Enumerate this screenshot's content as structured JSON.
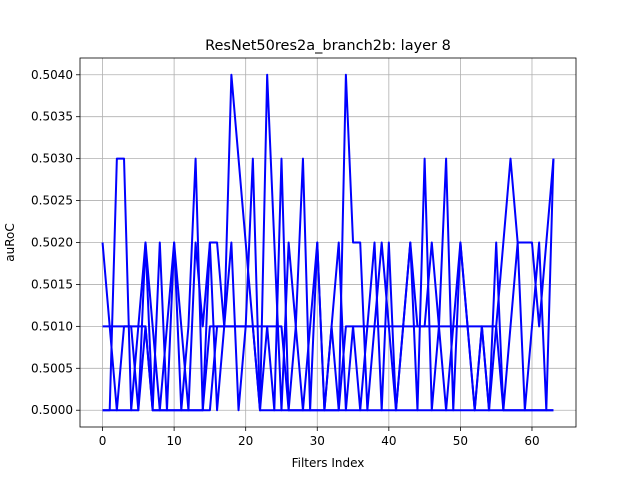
{
  "chart_data": {
    "type": "line",
    "title": "ResNet50res2a_branch2b: layer 8",
    "xlabel": "Filters Index",
    "ylabel": "auRoC",
    "xlim": [
      -3.15,
      66.15
    ],
    "ylim": [
      0.4998,
      0.5042
    ],
    "xticks": [
      0,
      10,
      20,
      30,
      40,
      50,
      60
    ],
    "xtick_labels": [
      "0",
      "10",
      "20",
      "30",
      "40",
      "50",
      "60"
    ],
    "yticks": [
      0.5,
      0.5005,
      0.501,
      0.5015,
      0.502,
      0.5025,
      0.503,
      0.5035,
      0.504
    ],
    "ytick_labels": [
      "0.5000",
      "0.5005",
      "0.5010",
      "0.5015",
      "0.5020",
      "0.5025",
      "0.5030",
      "0.5035",
      "0.5040"
    ],
    "grid": true,
    "color": "#0000ff",
    "series": [
      {
        "values": [
          0.502,
          0.501,
          0.5,
          0.501,
          0.501,
          0.5,
          0.501,
          0.5,
          0.502,
          0.5,
          0.502,
          0.5,
          0.501,
          0.503,
          0.5,
          0.502,
          0.5,
          0.501,
          0.502,
          0.5,
          0.501,
          0.503,
          0.5,
          0.501,
          0.5,
          0.503,
          0.5,
          0.501,
          0.503,
          0.5,
          0.502,
          0.5,
          0.501,
          0.502,
          0.5,
          0.501,
          0.5,
          0.501,
          0.502,
          0.5,
          0.502,
          0.5,
          0.501,
          0.502,
          0.5,
          0.503,
          0.5,
          0.501,
          0.503,
          0.5,
          0.502,
          0.501,
          0.5,
          0.501,
          0.5,
          0.502,
          0.5,
          0.501,
          0.502,
          0.5,
          0.501,
          0.502,
          0.5,
          0.503
        ]
      },
      {
        "values": [
          0.501,
          0.501,
          0.501,
          0.501,
          0.501,
          0.501,
          0.501,
          0.5,
          0.5,
          0.5,
          0.5,
          0.5,
          0.5,
          0.5,
          0.5,
          0.501,
          0.501,
          0.501,
          0.501,
          0.501,
          0.501,
          0.501,
          0.5,
          0.5,
          0.5,
          0.5,
          0.5,
          0.5,
          0.5,
          0.5,
          0.5,
          0.5,
          0.5,
          0.5,
          0.501,
          0.501,
          0.501,
          0.501,
          0.501,
          0.501,
          0.501,
          0.501,
          0.501,
          0.501,
          0.501,
          0.501,
          0.501,
          0.501,
          0.501,
          0.501,
          0.501,
          0.501,
          0.501,
          0.501,
          0.501,
          0.501,
          0.5,
          0.5,
          0.5,
          0.5,
          0.5,
          0.5,
          0.5,
          0.5
        ]
      },
      {
        "values": [
          0.5,
          0.5,
          0.503,
          0.503,
          0.5,
          0.501,
          0.502,
          0.501,
          0.5,
          0.501,
          0.502,
          0.501,
          0.5,
          0.502,
          0.501,
          0.502,
          0.502,
          0.501,
          0.504,
          0.503,
          0.502,
          0.501,
          0.5,
          0.504,
          0.502,
          0.5,
          0.502,
          0.501,
          0.5,
          0.501,
          0.502,
          0.5,
          0.501,
          0.5,
          0.504,
          0.502,
          0.502,
          0.5,
          0.501,
          0.502,
          0.501,
          0.5,
          0.501,
          0.502,
          0.501,
          0.501,
          0.502,
          0.501,
          0.5,
          0.501,
          0.502,
          0.501,
          0.5,
          0.501,
          0.5,
          0.501,
          0.502,
          0.503,
          0.502,
          0.502,
          0.502,
          0.501,
          0.502,
          0.503
        ]
      },
      {
        "values": [
          0.5,
          0.5,
          0.5,
          0.5,
          0.5,
          0.5,
          0.502,
          0.5,
          0.5,
          0.5,
          0.5,
          0.5,
          0.5,
          0.5,
          0.5,
          0.5,
          0.501,
          0.501,
          0.501,
          0.501,
          0.501,
          0.501,
          0.501,
          0.501,
          0.501,
          0.501,
          0.5,
          0.5,
          0.5,
          0.5,
          0.5,
          0.5,
          0.5,
          0.5,
          0.5,
          0.5,
          0.5,
          0.5,
          0.5,
          0.5,
          0.5,
          0.5,
          0.5,
          0.5,
          0.5,
          0.5,
          0.5,
          0.5,
          0.5,
          0.5,
          0.5,
          0.5,
          0.5,
          0.5,
          0.5,
          0.5,
          0.5,
          0.5,
          0.5,
          0.5,
          0.5,
          0.5,
          0.5,
          0.5
        ]
      }
    ]
  }
}
